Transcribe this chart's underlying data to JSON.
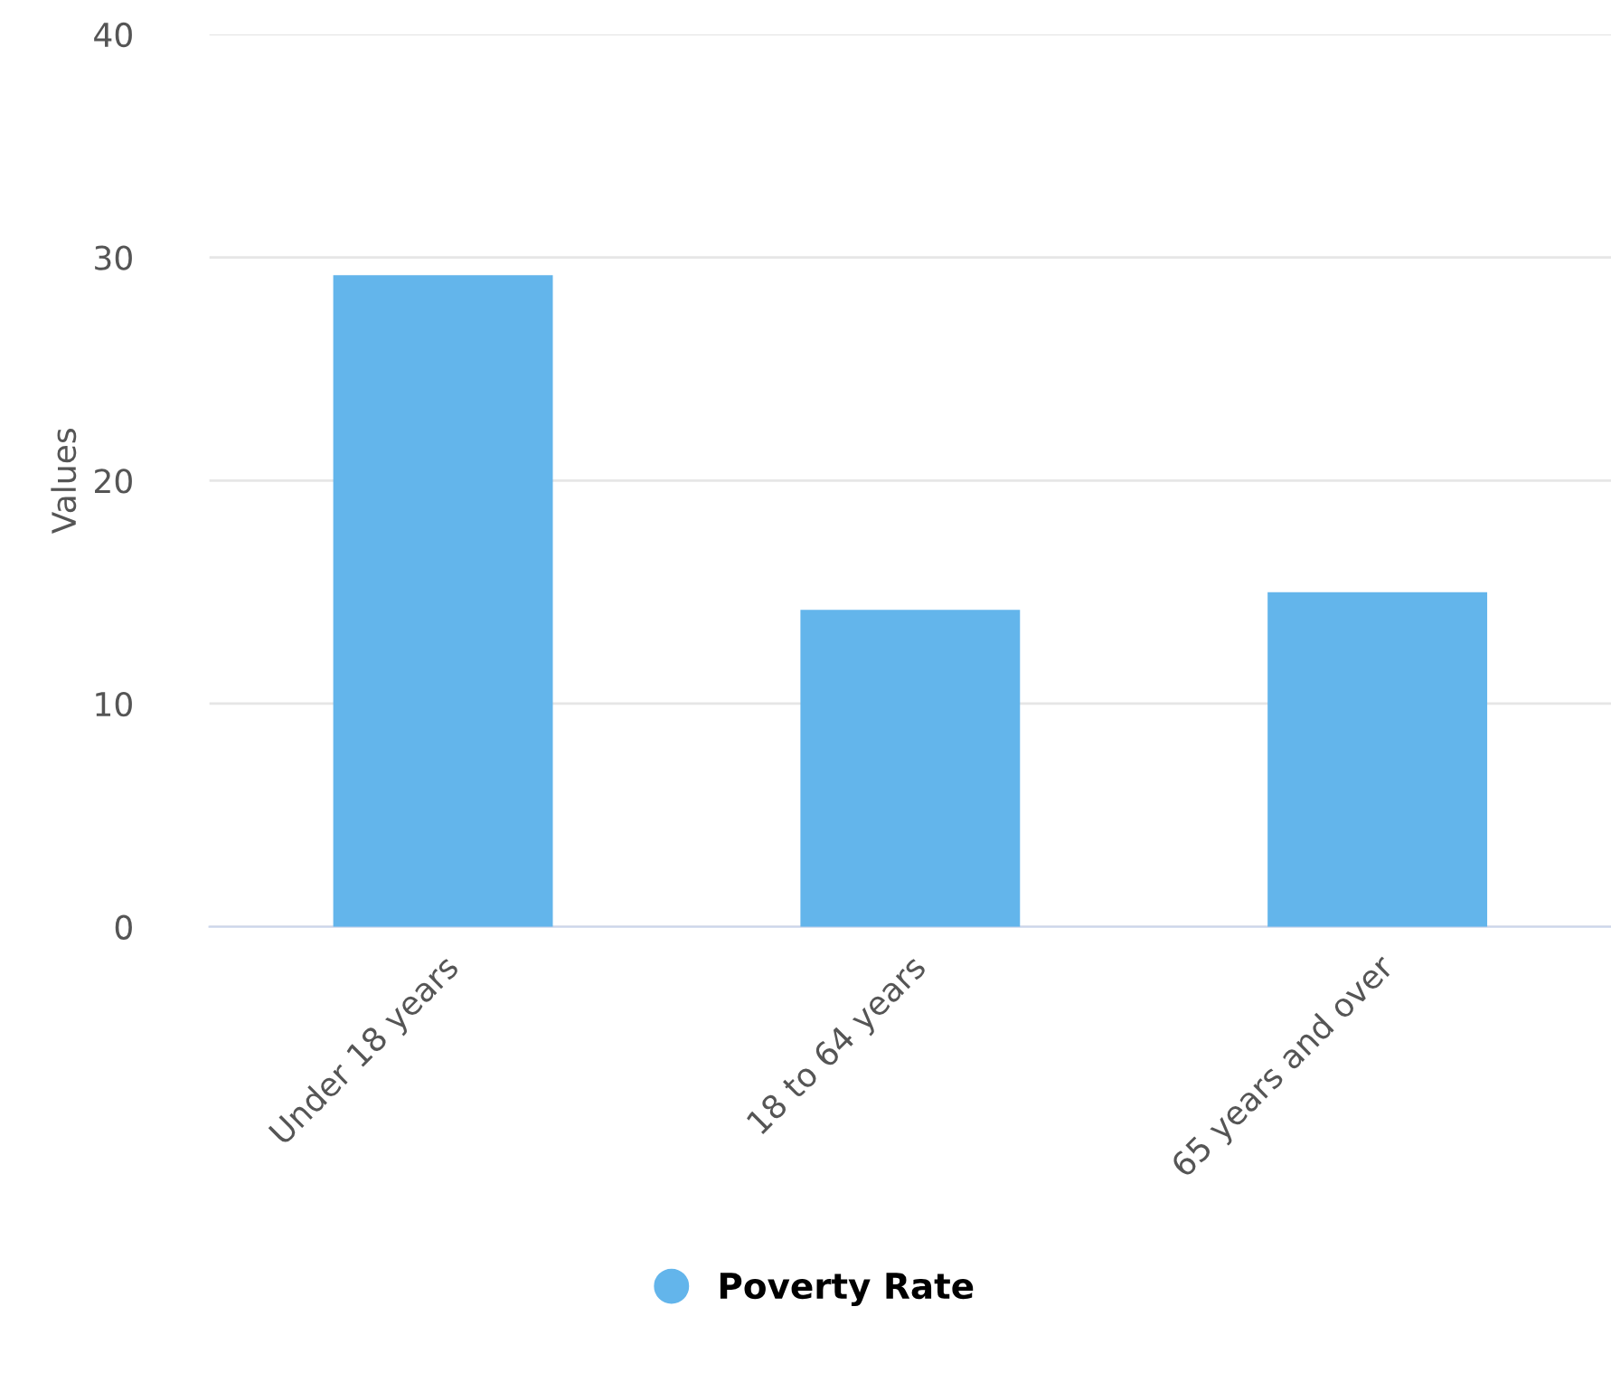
{
  "chart_data": {
    "type": "bar",
    "ylabel": "Values",
    "categories": [
      "Under 18 years",
      "18 to 64 years",
      "65 years and over"
    ],
    "series": [
      {
        "name": "Poverty Rate",
        "color": "#63b5eb",
        "values": [
          29.2,
          14.2,
          15.0
        ]
      }
    ],
    "ylim": [
      0,
      40
    ],
    "yticks": [
      0,
      10,
      20,
      30,
      40
    ],
    "grid": "y",
    "legend": "bottom"
  }
}
